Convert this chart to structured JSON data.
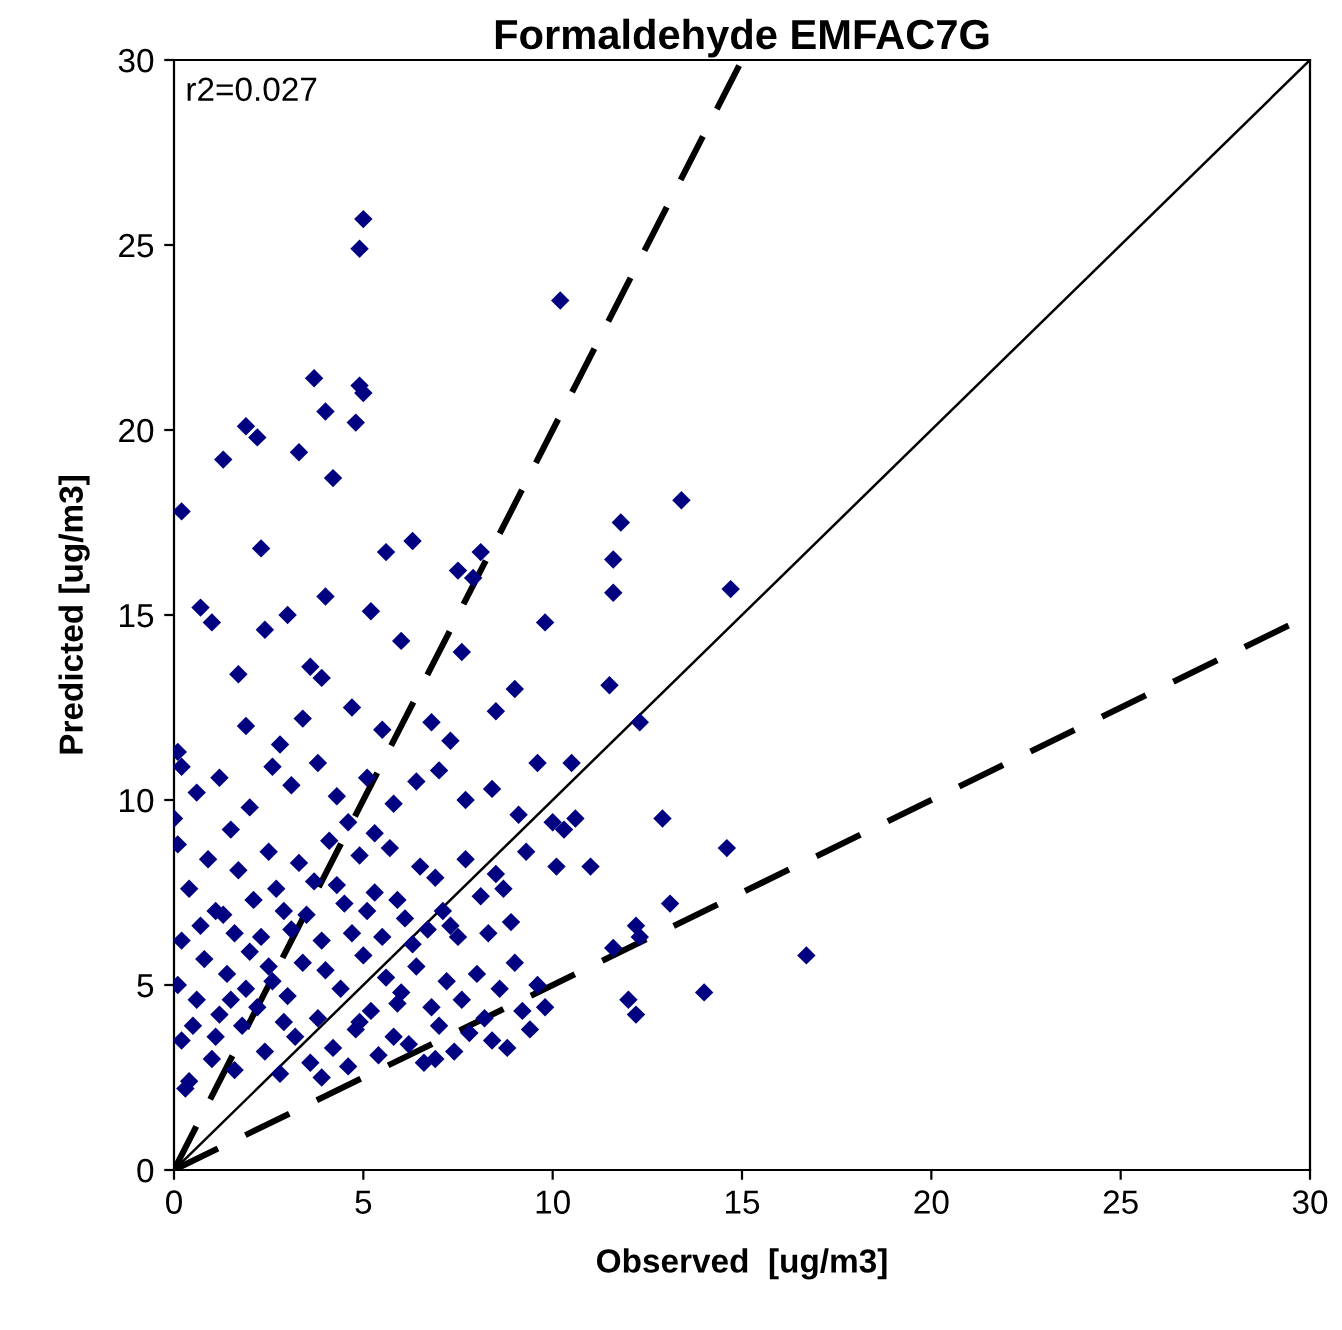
{
  "chart_data": {
    "type": "scatter",
    "title": "Formaldehyde EMFAC7G",
    "xlabel": "Observed  [ug/m3]",
    "ylabel": "Predicted [ug/m3]",
    "annotations": [
      "r2=0.027"
    ],
    "xlim": [
      0,
      30
    ],
    "ylim": [
      0,
      30
    ],
    "xticks": [
      0,
      5,
      10,
      15,
      20,
      25,
      30
    ],
    "yticks": [
      0,
      5,
      10,
      15,
      20,
      25,
      30
    ],
    "grid": false,
    "legend": false,
    "series": [
      {
        "color": "#000080",
        "marker": "diamond",
        "x": [
          5.0,
          4.9,
          10.2,
          3.7,
          4.9,
          5.0,
          4.0,
          4.8,
          1.9,
          2.2,
          1.3,
          3.3,
          0.2,
          4.2,
          13.4,
          11.8,
          6.3,
          5.6,
          8.1,
          2.3,
          7.5,
          7.9,
          11.6,
          0.7,
          1.0,
          14.7,
          11.6,
          4.0,
          5.2,
          3.0,
          2.4,
          7.6,
          9.8,
          6.0,
          3.6,
          1.7,
          3.9,
          11.5,
          9.0,
          8.5,
          0.1,
          0.2,
          12.3,
          1.9,
          4.7,
          3.4,
          5.5,
          6.8,
          7.3,
          2.8,
          0.6,
          1.2,
          2.0,
          2.6,
          3.1,
          3.8,
          4.3,
          5.1,
          5.8,
          6.4,
          7.0,
          7.7,
          8.4,
          9.1,
          9.6,
          10.5,
          0.0,
          1.5,
          4.6,
          5.3,
          0.1,
          0.4,
          0.9,
          1.3,
          1.7,
          2.1,
          2.5,
          2.9,
          3.3,
          3.7,
          4.1,
          4.5,
          4.9,
          5.3,
          5.7,
          6.1,
          6.5,
          6.9,
          7.3,
          7.7,
          8.1,
          8.5,
          8.9,
          9.3,
          0.2,
          0.7,
          1.1,
          1.6,
          2.3,
          2.7,
          3.1,
          3.5,
          3.9,
          4.3,
          4.7,
          5.1,
          5.5,
          5.9,
          6.3,
          6.7,
          7.1,
          7.5,
          8.3,
          8.7,
          10.6,
          10.3,
          10.0,
          11.0,
          12.2,
          12.3,
          0.1,
          0.2,
          0.4,
          0.6,
          0.8,
          1.0,
          1.2,
          1.4,
          1.6,
          1.8,
          2.0,
          2.2,
          2.4,
          2.6,
          2.8,
          3.0,
          3.2,
          3.4,
          3.6,
          3.8,
          4.0,
          4.2,
          4.4,
          4.6,
          4.8,
          5.0,
          5.2,
          5.4,
          5.6,
          5.8,
          6.0,
          6.2,
          6.4,
          6.6,
          6.8,
          7.0,
          7.2,
          7.4,
          7.6,
          7.8,
          8.0,
          8.2,
          8.4,
          8.6,
          8.8,
          9.0,
          9.2,
          9.4,
          9.6,
          9.8,
          16.7,
          14.0,
          14.6,
          12.0,
          12.2,
          12.9,
          13.1,
          11.6,
          10.1,
          0.3,
          1.1,
          1.9,
          2.9,
          3.9,
          4.9,
          5.9,
          6.9,
          0.5,
          1.5,
          2.5
        ],
        "values": [
          25.7,
          24.9,
          23.5,
          21.4,
          21.2,
          21.0,
          20.5,
          20.2,
          20.1,
          19.8,
          19.2,
          19.4,
          17.8,
          18.7,
          18.1,
          17.5,
          17.0,
          16.7,
          16.7,
          16.8,
          16.2,
          16.0,
          16.5,
          15.2,
          14.8,
          15.7,
          15.6,
          15.5,
          15.1,
          15.0,
          14.6,
          14.0,
          14.8,
          14.3,
          13.6,
          13.4,
          13.3,
          13.1,
          13.0,
          12.4,
          11.3,
          10.9,
          12.1,
          12.0,
          12.5,
          12.2,
          11.9,
          12.1,
          11.6,
          11.5,
          10.2,
          10.6,
          9.8,
          10.9,
          10.4,
          11.0,
          10.1,
          10.6,
          9.9,
          10.5,
          10.8,
          10.0,
          10.3,
          9.6,
          11.0,
          11.0,
          9.5,
          9.2,
          9.4,
          9.1,
          8.8,
          7.6,
          8.4,
          6.9,
          8.1,
          7.3,
          8.6,
          7.0,
          8.3,
          7.8,
          8.9,
          7.2,
          8.5,
          7.5,
          8.7,
          6.8,
          8.2,
          7.9,
          6.6,
          8.4,
          7.4,
          8.0,
          6.7,
          8.6,
          6.2,
          6.6,
          7.0,
          6.4,
          6.3,
          7.6,
          6.5,
          6.9,
          6.2,
          7.7,
          6.4,
          7.0,
          6.3,
          7.3,
          6.1,
          6.5,
          7.0,
          6.3,
          6.4,
          7.6,
          9.5,
          9.2,
          9.4,
          8.2,
          6.6,
          6.3,
          5.0,
          3.5,
          2.4,
          4.6,
          5.7,
          3.0,
          4.2,
          5.3,
          2.7,
          3.9,
          5.9,
          4.4,
          3.2,
          5.1,
          2.6,
          4.7,
          3.6,
          5.6,
          2.9,
          4.1,
          5.4,
          3.3,
          4.9,
          2.8,
          3.8,
          5.8,
          4.3,
          3.1,
          5.2,
          3.6,
          4.8,
          3.4,
          5.5,
          2.9,
          4.4,
          3.9,
          5.1,
          3.2,
          4.6,
          3.7,
          5.3,
          4.1,
          3.5,
          4.9,
          3.3,
          5.6,
          4.3,
          3.8,
          5.0,
          4.4,
          5.8,
          4.8,
          8.7,
          4.6,
          4.2,
          9.5,
          7.2,
          6.0,
          8.2,
          2.2,
          3.6,
          4.9,
          4.0,
          2.5,
          4.0,
          4.5,
          3.0,
          3.9,
          4.6,
          5.5
        ]
      },
      {
        "type": "line",
        "color": "#000000",
        "line_style": "solid",
        "x": [
          0,
          30
        ],
        "values": [
          0,
          30
        ]
      },
      {
        "type": "line",
        "color": "#000000",
        "line_style": "dashed",
        "x": [
          0,
          15
        ],
        "values": [
          0,
          30
        ]
      },
      {
        "type": "line",
        "color": "#000000",
        "line_style": "dashed",
        "x": [
          0,
          30
        ],
        "values": [
          0,
          15
        ]
      }
    ]
  }
}
